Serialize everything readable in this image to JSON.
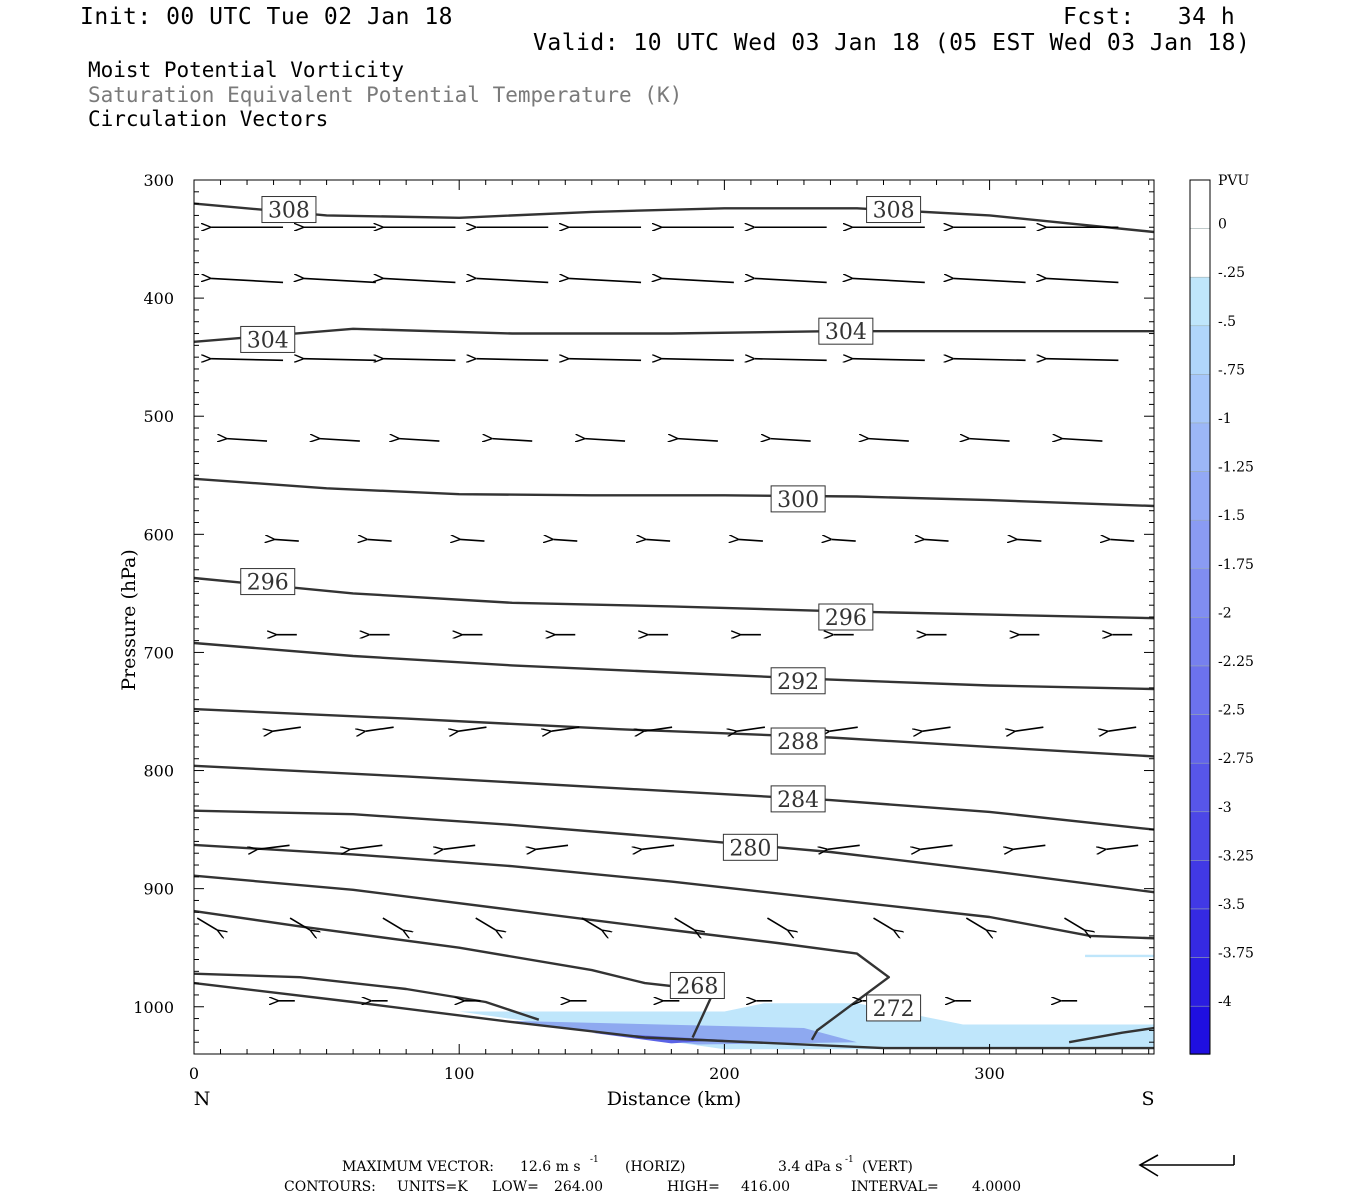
{
  "header": {
    "init": "Init: 00 UTC Tue 02 Jan 18",
    "fcst": "Fcst:   34 h",
    "valid": "Valid: 10 UTC Wed 03 Jan 18 (05 EST Wed 03 Jan 18)",
    "field1": "Moist Potential Vorticity",
    "field2": "Saturation Equivalent Potential Temperature (K)",
    "field3": "Circulation Vectors"
  },
  "colors": {
    "contour": "#333333",
    "pv_light": "#bfe6fb",
    "pv_mid": "#8ea9f0",
    "pv_dark": "#5a63e6"
  },
  "chart_data": {
    "type": "cross-section",
    "xlabel": "Distance (km)",
    "ylabel": "Pressure (hPa)",
    "xlim": [
      0,
      362
    ],
    "ylim": [
      1040,
      300
    ],
    "x_ticks": [
      0,
      100,
      200,
      300
    ],
    "y_ticks": [
      300,
      400,
      500,
      600,
      700,
      800,
      900,
      1000
    ],
    "x_end_labels": {
      "left": "N",
      "right": "S"
    },
    "contour_labels": [
      {
        "value": "308",
        "x": 26,
        "p": 325
      },
      {
        "value": "308",
        "x": 254,
        "p": 325
      },
      {
        "value": "304",
        "x": 18,
        "p": 435
      },
      {
        "value": "304",
        "x": 236,
        "p": 428
      },
      {
        "value": "300",
        "x": 218,
        "p": 570
      },
      {
        "value": "296",
        "x": 18,
        "p": 640
      },
      {
        "value": "296",
        "x": 236,
        "p": 670
      },
      {
        "value": "292",
        "x": 218,
        "p": 724
      },
      {
        "value": "288",
        "x": 218,
        "p": 775
      },
      {
        "value": "284",
        "x": 218,
        "p": 824
      },
      {
        "value": "280",
        "x": 200,
        "p": 865
      },
      {
        "value": "268",
        "x": 180,
        "p": 982
      },
      {
        "value": "272",
        "x": 254,
        "p": 1001
      }
    ],
    "contours": [
      [
        [
          0,
          320
        ],
        [
          50,
          330
        ],
        [
          100,
          332
        ],
        [
          150,
          327
        ],
        [
          200,
          324
        ],
        [
          250,
          324
        ],
        [
          300,
          330
        ],
        [
          362,
          344
        ]
      ],
      [
        [
          0,
          437
        ],
        [
          60,
          426
        ],
        [
          120,
          430
        ],
        [
          180,
          430
        ],
        [
          240,
          428
        ],
        [
          300,
          428
        ],
        [
          362,
          428
        ]
      ],
      [
        [
          0,
          553
        ],
        [
          50,
          561
        ],
        [
          100,
          566
        ],
        [
          150,
          567
        ],
        [
          200,
          567
        ],
        [
          250,
          568
        ],
        [
          300,
          571
        ],
        [
          362,
          576
        ]
      ],
      [
        [
          0,
          637
        ],
        [
          60,
          650
        ],
        [
          120,
          658
        ],
        [
          180,
          661
        ],
        [
          240,
          665
        ],
        [
          300,
          668
        ],
        [
          362,
          671
        ]
      ],
      [
        [
          0,
          692
        ],
        [
          60,
          703
        ],
        [
          120,
          711
        ],
        [
          180,
          717
        ],
        [
          240,
          723
        ],
        [
          300,
          728
        ],
        [
          362,
          731
        ]
      ],
      [
        [
          0,
          748
        ],
        [
          80,
          756
        ],
        [
          160,
          765
        ],
        [
          240,
          772
        ],
        [
          300,
          780
        ],
        [
          362,
          788
        ]
      ],
      [
        [
          0,
          796
        ],
        [
          80,
          805
        ],
        [
          160,
          815
        ],
        [
          240,
          825
        ],
        [
          300,
          835
        ],
        [
          362,
          850
        ]
      ],
      [
        [
          0,
          834
        ],
        [
          60,
          837
        ],
        [
          120,
          846
        ],
        [
          180,
          857
        ],
        [
          240,
          869
        ],
        [
          300,
          885
        ],
        [
          362,
          903
        ]
      ],
      [
        [
          0,
          863
        ],
        [
          60,
          871
        ],
        [
          120,
          881
        ],
        [
          180,
          894
        ],
        [
          240,
          909
        ],
        [
          300,
          924
        ],
        [
          338,
          940
        ],
        [
          362,
          942
        ]
      ],
      [
        [
          0,
          889
        ],
        [
          60,
          901
        ],
        [
          120,
          918
        ],
        [
          180,
          935
        ],
        [
          220,
          946
        ],
        [
          250,
          955
        ],
        [
          262,
          975
        ],
        [
          235,
          1020
        ],
        [
          233,
          1028
        ]
      ],
      [
        [
          0,
          919
        ],
        [
          40,
          932
        ],
        [
          100,
          950
        ],
        [
          150,
          969
        ],
        [
          170,
          980
        ],
        [
          190,
          985
        ],
        [
          195,
          992
        ],
        [
          188,
          1026
        ]
      ],
      [
        [
          0,
          972
        ],
        [
          40,
          975
        ],
        [
          80,
          985
        ],
        [
          110,
          996
        ],
        [
          130,
          1011
        ]
      ],
      [
        [
          0,
          980
        ],
        [
          60,
          996
        ],
        [
          120,
          1013
        ],
        [
          170,
          1026
        ],
        [
          260,
          1035
        ],
        [
          362,
          1035
        ]
      ],
      [
        [
          330,
          1030
        ],
        [
          350,
          1022
        ],
        [
          362,
          1018
        ]
      ]
    ],
    "pv_shading": {
      "levels": [
        0,
        -0.25,
        -0.5,
        -0.75,
        -1,
        -1.25,
        -1.5,
        -1.75,
        -2,
        -2.25,
        -2.5,
        -2.75,
        -3,
        -3.25,
        -3.5,
        -3.75,
        -4
      ],
      "colorbar_unit": "PVU",
      "colorbar_labels": [
        "PVU",
        "0",
        "-.25",
        "-.5",
        "-.75",
        "-1",
        "-1.25",
        "-1.5",
        "-1.75",
        "-2",
        "-2.25",
        "-2.5",
        "-2.75",
        "-3",
        "-3.25",
        "-3.5",
        "-3.75",
        "-4"
      ]
    },
    "vectors": [
      {
        "p": 340,
        "xs": [
          20,
          55,
          85,
          120,
          155,
          190,
          225,
          262,
          300,
          335
        ],
        "u": -0.9,
        "w": 0.0
      },
      {
        "p": 385,
        "xs": [
          20,
          55,
          85,
          120,
          155,
          190,
          225,
          262,
          300,
          335
        ],
        "u": -0.9,
        "w": -0.05
      },
      {
        "p": 452,
        "xs": [
          20,
          55,
          85,
          120,
          155,
          190,
          225,
          262,
          300,
          335
        ],
        "u": -0.9,
        "w": -0.02
      },
      {
        "p": 520,
        "xs": [
          20,
          55,
          85,
          120,
          155,
          190,
          225,
          262,
          300,
          335
        ],
        "u": -0.5,
        "w": -0.03
      },
      {
        "p": 605,
        "xs": [
          35,
          70,
          105,
          140,
          175,
          210,
          245,
          280,
          315,
          350
        ],
        "u": -0.3,
        "w": -0.02
      },
      {
        "p": 685,
        "xs": [
          35,
          70,
          105,
          140,
          175,
          210,
          245,
          280,
          315,
          350
        ],
        "u": -0.25,
        "w": 0.0
      },
      {
        "p": 765,
        "xs": [
          35,
          70,
          105,
          140,
          175,
          210,
          245,
          280,
          315,
          350
        ],
        "u": -0.35,
        "w": 0.05
      },
      {
        "p": 865,
        "xs": [
          30,
          65,
          100,
          135,
          175,
          210,
          245,
          280,
          315,
          350
        ],
        "u": -0.4,
        "w": 0.05
      },
      {
        "p": 930,
        "xs": [
          5,
          40,
          75,
          110,
          150,
          185,
          220,
          260,
          295,
          332
        ],
        "u": 0.25,
        "w": 0.15
      },
      {
        "p": 995,
        "xs": [
          35,
          70,
          105,
          145,
          180,
          215,
          255,
          290,
          330
        ],
        "u": -0.2,
        "w": 0.0
      }
    ],
    "reference_vector": {
      "max_label": "MAXIMUM VECTOR:",
      "horiz": "12.6 m s",
      "horiz_unit": "(HORIZ)",
      "vert": "3.4 dPa s",
      "vert_unit": "(VERT)"
    },
    "contour_info": {
      "label": "CONTOURS:",
      "units": "UNITS=K",
      "low_label": "LOW=",
      "low": "264.00",
      "high_label": "HIGH=",
      "high": "416.00",
      "interval_label": "INTERVAL=",
      "interval": "4.0000"
    }
  }
}
